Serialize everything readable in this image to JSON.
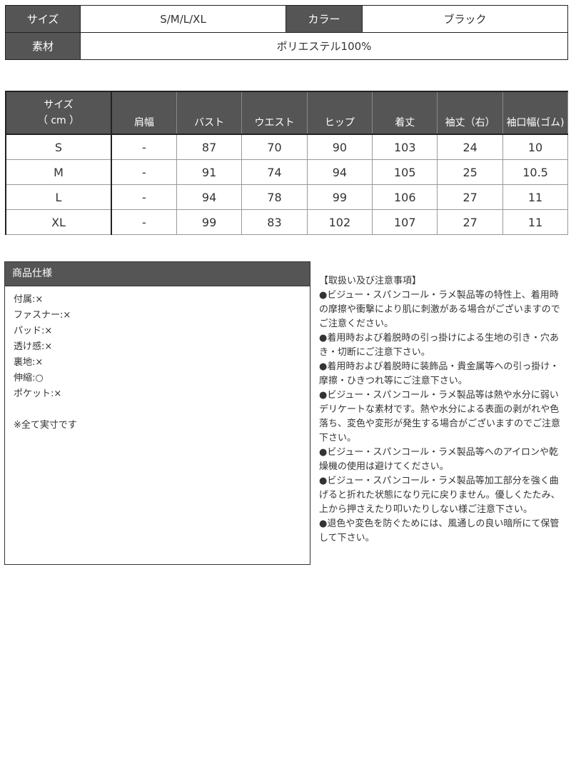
{
  "spec": {
    "size_label": "サイズ",
    "size_value": "S/M/L/XL",
    "color_label": "カラー",
    "color_value": "ブラック",
    "material_label": "素材",
    "material_value": "ポリエステル100%"
  },
  "size_table": {
    "header_size_line1": "サイズ",
    "header_size_line2": "（ cm ）",
    "columns": [
      "肩幅",
      "バスト",
      "ウエスト",
      "ヒップ",
      "着丈",
      "袖丈（右）",
      "袖口幅(ゴム)"
    ],
    "rows": [
      [
        "S",
        "-",
        "87",
        "70",
        "90",
        "103",
        "24",
        "10"
      ],
      [
        "M",
        "-",
        "91",
        "74",
        "94",
        "105",
        "25",
        "10.5"
      ],
      [
        "L",
        "-",
        "94",
        "78",
        "99",
        "106",
        "27",
        "11"
      ],
      [
        "XL",
        "-",
        "99",
        "83",
        "102",
        "107",
        "27",
        "11"
      ]
    ]
  },
  "product_spec": {
    "title": "商品仕様",
    "items": [
      "付属:×",
      "ファスナー:×",
      "パッド:×",
      "透け感:×",
      "裏地:×",
      "伸縮:○",
      "ポケット:×"
    ],
    "note": "※全て実寸です"
  },
  "care": {
    "title": "【取扱い及び注意事項】",
    "items": [
      "●ビジュー・スパンコール・ラメ製品等の特性上、着用時の摩擦や衝撃により肌に刺激がある場合がございますのでご注意ください。",
      "●着用時および着脱時の引っ掛けによる生地の引き・穴あき・切断にご注意下さい。",
      "●着用時および着脱時に装飾品・貴金属等への引っ掛け・摩擦・ひきつれ等にご注意下さい。",
      "●ビジュー・スパンコール・ラメ製品等は熱や水分に弱いデリケートな素材です。熱や水分による表面の剥がれや色落ち、変色や変形が発生する場合がございますのでご注意下さい。",
      "●ビジュー・スパンコール・ラメ製品等へのアイロンや乾燥機の使用は避けてください。",
      "●ビジュー・スパンコール・ラメ製品等加工部分を強く曲げると折れた状態になり元に戻りません。優しくたたみ、上から押さえたり叩いたりしない様ご注意下さい。",
      "●退色や変色を防ぐためには、風通しの良い暗所にて保管して下さい。"
    ]
  },
  "colors": {
    "header_bg": "#555555",
    "header_text": "#ffffff",
    "border": "#222222"
  }
}
